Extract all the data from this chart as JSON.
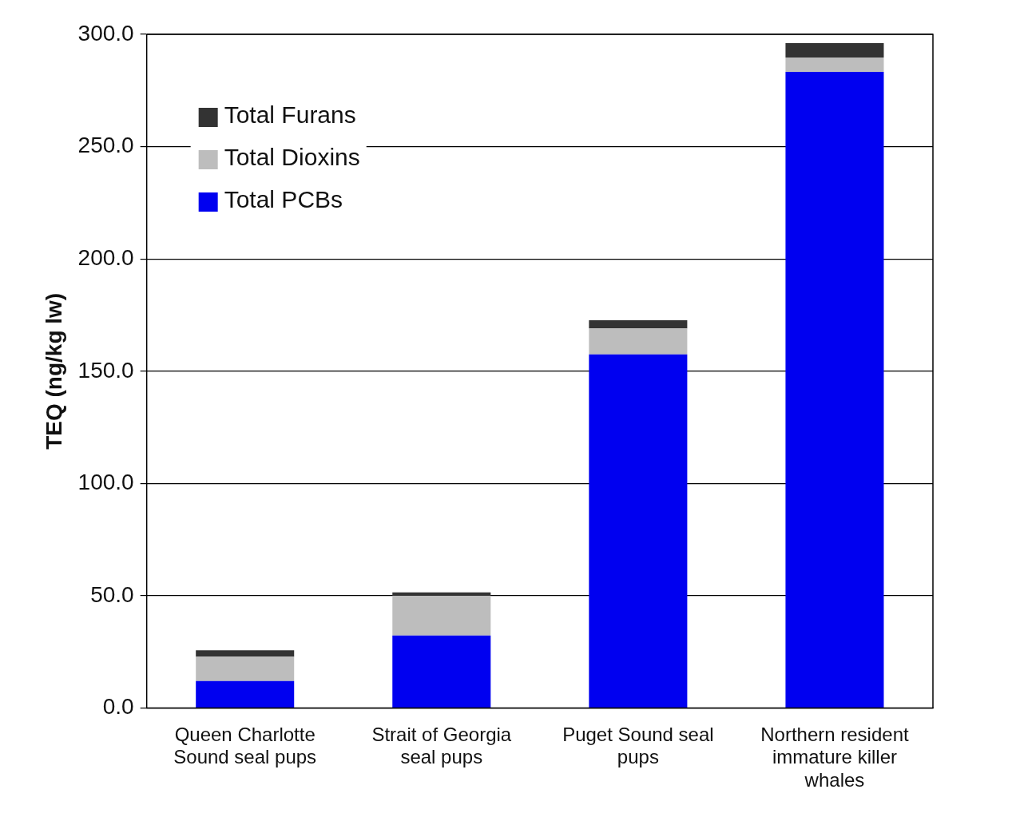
{
  "chart_data": {
    "type": "bar",
    "stacked": true,
    "ylabel": "TEQ (ng/kg lw)",
    "categories": [
      "Queen Charlotte Sound seal pups",
      "Strait of Georgia seal pups",
      "Puget Sound seal pups",
      "Northern resident immature killer whales"
    ],
    "series": [
      {
        "name": "Total PCBs",
        "color": "#0000f0",
        "values": [
          12.0,
          32.3,
          157.5,
          283.3
        ]
      },
      {
        "name": "Total Dioxins",
        "color": "#bdbdbd",
        "values": [
          10.9,
          17.7,
          11.5,
          6.4
        ]
      },
      {
        "name": "Total Furans",
        "color": "#333333",
        "values": [
          2.8,
          1.5,
          3.7,
          6.4
        ]
      }
    ],
    "ylim": [
      0,
      300
    ],
    "yticks": [
      {
        "value": 0,
        "label": "0.0"
      },
      {
        "value": 50,
        "label": "50.0"
      },
      {
        "value": 100,
        "label": "100.0"
      },
      {
        "value": 150,
        "label": "150.0"
      },
      {
        "value": 200,
        "label": "200.0"
      },
      {
        "value": 250,
        "label": "250.0"
      },
      {
        "value": 300,
        "label": "300.0"
      }
    ],
    "grid": "y",
    "legend": "top left"
  }
}
